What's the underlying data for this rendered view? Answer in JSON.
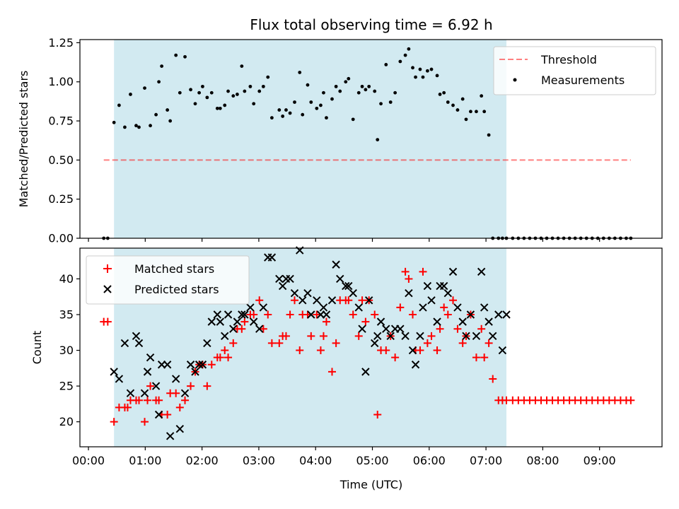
{
  "figure": {
    "title": "Flux total observing time = 6.92 h",
    "xlabel": "Time (UTC)",
    "xtick_labels": [
      "00:00",
      "01:00",
      "02:00",
      "03:00",
      "04:00",
      "05:00",
      "06:00",
      "07:00",
      "08:00",
      "09:00"
    ],
    "colors": {
      "shade": "#add8e6",
      "threshold": "#ff0000",
      "measurements": "#000000",
      "matched": "#ff0000",
      "predicted": "#000000"
    }
  },
  "chart_data": [
    {
      "type": "scatter",
      "ylabel": "Matched/Predicted stars",
      "xlim": [
        -0.15,
        10.1
      ],
      "ylim": [
        0,
        1.27
      ],
      "yticks": [
        0.0,
        0.25,
        0.5,
        0.75,
        1.0,
        1.25
      ],
      "ytick_labels": [
        "0.00",
        "0.25",
        "0.50",
        "0.75",
        "1.00",
        "1.25"
      ],
      "shaded_span": [
        0.45,
        7.36
      ],
      "threshold": {
        "name": "Threshold",
        "y": 0.5,
        "x_range": [
          0.27,
          9.55
        ]
      },
      "legend": {
        "position": "top-right",
        "entries": [
          "Threshold",
          "Measurements"
        ]
      },
      "series": [
        {
          "name": "Measurements",
          "x": [
            0.27,
            0.34,
            0.45,
            0.54,
            0.64,
            0.74,
            0.84,
            0.89,
            0.99,
            1.09,
            1.19,
            1.24,
            1.29,
            1.39,
            1.44,
            1.54,
            1.61,
            1.7,
            1.8,
            1.88,
            1.95,
            2.01,
            2.09,
            2.17,
            2.27,
            2.32,
            2.4,
            2.46,
            2.55,
            2.62,
            2.7,
            2.75,
            2.85,
            2.91,
            3.01,
            3.08,
            3.16,
            3.23,
            3.36,
            3.42,
            3.48,
            3.55,
            3.63,
            3.72,
            3.77,
            3.86,
            3.92,
            4.02,
            4.09,
            4.14,
            4.19,
            4.29,
            4.36,
            4.43,
            4.53,
            4.58,
            4.66,
            4.76,
            4.82,
            4.88,
            4.94,
            5.04,
            5.09,
            5.15,
            5.24,
            5.32,
            5.4,
            5.49,
            5.58,
            5.64,
            5.71,
            5.76,
            5.84,
            5.89,
            5.97,
            6.04,
            6.14,
            6.19,
            6.26,
            6.33,
            6.42,
            6.5,
            6.59,
            6.65,
            6.73,
            6.83,
            6.92,
            6.97,
            7.05,
            7.12,
            7.22,
            7.29,
            7.36,
            7.47,
            7.57,
            7.67,
            7.77,
            7.87,
            7.97,
            8.07,
            8.17,
            8.27,
            8.37,
            8.47,
            8.57,
            8.67,
            8.77,
            8.87,
            8.97,
            9.07,
            9.17,
            9.27,
            9.37,
            9.47,
            9.55
          ],
          "y": [
            0,
            0,
            0.74,
            0.85,
            0.71,
            0.92,
            0.72,
            0.71,
            0.96,
            0.72,
            0.79,
            1.0,
            1.1,
            0.82,
            0.75,
            1.17,
            0.93,
            1.16,
            0.95,
            0.86,
            0.93,
            0.97,
            0.9,
            0.93,
            0.83,
            0.83,
            0.85,
            0.94,
            0.91,
            0.92,
            1.1,
            0.94,
            0.97,
            0.86,
            0.94,
            0.97,
            1.03,
            0.77,
            0.82,
            0.78,
            0.82,
            0.8,
            0.87,
            1.06,
            0.79,
            0.98,
            0.87,
            0.83,
            0.85,
            0.93,
            0.77,
            0.89,
            0.97,
            0.94,
            1.0,
            1.02,
            0.76,
            0.93,
            0.97,
            0.95,
            0.97,
            0.94,
            0.63,
            0.86,
            1.11,
            0.87,
            0.93,
            1.13,
            1.17,
            1.21,
            1.09,
            1.03,
            1.08,
            1.03,
            1.07,
            1.08,
            1.04,
            0.92,
            0.93,
            0.87,
            0.85,
            0.82,
            0.89,
            0.76,
            0.81,
            0.81,
            0.91,
            0.81,
            0.66,
            0,
            0,
            0,
            0,
            0,
            0,
            0,
            0,
            0,
            0,
            0,
            0,
            0,
            0,
            0,
            0,
            0,
            0,
            0,
            0,
            0,
            0,
            0,
            0,
            0,
            0
          ]
        }
      ]
    },
    {
      "type": "scatter",
      "ylabel": "Count",
      "xlim": [
        -0.15,
        10.1
      ],
      "ylim": [
        16.5,
        44.3
      ],
      "yticks": [
        20,
        25,
        30,
        35,
        40
      ],
      "ytick_labels": [
        "20",
        "25",
        "30",
        "35",
        "40"
      ],
      "shaded_span": [
        0.45,
        7.36
      ],
      "legend": {
        "position": "top-left",
        "entries": [
          "Matched stars",
          "Predicted stars"
        ]
      },
      "series": [
        {
          "name": "Matched stars",
          "x": [
            0.27,
            0.34,
            0.45,
            0.54,
            0.64,
            0.69,
            0.74,
            0.84,
            0.89,
            0.99,
            1.04,
            1.09,
            1.19,
            1.24,
            1.29,
            1.39,
            1.44,
            1.54,
            1.61,
            1.7,
            1.8,
            1.88,
            1.95,
            2.01,
            2.09,
            2.17,
            2.27,
            2.32,
            2.4,
            2.46,
            2.55,
            2.62,
            2.7,
            2.75,
            2.85,
            2.91,
            3.01,
            3.08,
            3.16,
            3.23,
            3.36,
            3.42,
            3.48,
            3.55,
            3.63,
            3.72,
            3.77,
            3.86,
            3.92,
            4.02,
            4.09,
            4.14,
            4.19,
            4.29,
            4.36,
            4.43,
            4.53,
            4.58,
            4.66,
            4.76,
            4.82,
            4.88,
            4.94,
            5.04,
            5.09,
            5.15,
            5.24,
            5.32,
            5.4,
            5.49,
            5.58,
            5.64,
            5.71,
            5.76,
            5.84,
            5.89,
            5.97,
            6.04,
            6.14,
            6.19,
            6.26,
            6.33,
            6.42,
            6.5,
            6.59,
            6.65,
            6.73,
            6.83,
            6.92,
            6.97,
            7.05,
            7.12,
            7.22,
            7.29,
            7.36,
            7.47,
            7.57,
            7.67,
            7.77,
            7.87,
            7.97,
            8.07,
            8.17,
            8.27,
            8.37,
            8.47,
            8.57,
            8.67,
            8.77,
            8.87,
            8.97,
            9.07,
            9.17,
            9.27,
            9.37,
            9.47,
            9.55
          ],
          "y": [
            34,
            34,
            20,
            22,
            22,
            22,
            23,
            23,
            23,
            20,
            23,
            25,
            23,
            23,
            21,
            21,
            24,
            24,
            22,
            23,
            25,
            27,
            28,
            28,
            25,
            28,
            29,
            29,
            30,
            29,
            31,
            33,
            33,
            34,
            35,
            35,
            37,
            33,
            35,
            31,
            31,
            32,
            32,
            35,
            37,
            30,
            35,
            35,
            32,
            35,
            30,
            32,
            34,
            27,
            31,
            37,
            37,
            37,
            35,
            32,
            37,
            34,
            37,
            35,
            21,
            30,
            30,
            32,
            29,
            36,
            41,
            40,
            35,
            30,
            30,
            41,
            31,
            32,
            30,
            33,
            36,
            35,
            37,
            33,
            31,
            32,
            35,
            29,
            33,
            29,
            31,
            26,
            23,
            23,
            23,
            23,
            23,
            23,
            23,
            23,
            23,
            23,
            23,
            23,
            23,
            23,
            23,
            23,
            23,
            23,
            23,
            23,
            23,
            23,
            23,
            23,
            23
          ]
        },
        {
          "name": "Predicted stars",
          "x": [
            0.45,
            0.54,
            0.64,
            0.74,
            0.84,
            0.89,
            0.99,
            1.04,
            1.09,
            1.19,
            1.24,
            1.29,
            1.39,
            1.44,
            1.54,
            1.61,
            1.7,
            1.8,
            1.88,
            1.95,
            2.01,
            2.09,
            2.17,
            2.27,
            2.32,
            2.4,
            2.46,
            2.55,
            2.62,
            2.7,
            2.75,
            2.85,
            2.91,
            3.01,
            3.08,
            3.16,
            3.23,
            3.36,
            3.42,
            3.48,
            3.55,
            3.63,
            3.72,
            3.77,
            3.86,
            3.92,
            4.02,
            4.09,
            4.14,
            4.19,
            4.29,
            4.36,
            4.43,
            4.53,
            4.58,
            4.66,
            4.76,
            4.82,
            4.88,
            4.94,
            5.04,
            5.09,
            5.15,
            5.24,
            5.32,
            5.4,
            5.49,
            5.58,
            5.64,
            5.71,
            5.76,
            5.84,
            5.89,
            5.97,
            6.04,
            6.14,
            6.19,
            6.26,
            6.33,
            6.42,
            6.5,
            6.59,
            6.65,
            6.73,
            6.83,
            6.92,
            6.97,
            7.05,
            7.12,
            7.22,
            7.29,
            7.36
          ],
          "y": [
            27,
            26,
            31,
            24,
            32,
            31,
            24,
            27,
            29,
            25,
            21,
            28,
            28,
            18,
            26,
            19,
            24,
            28,
            27,
            28,
            28,
            31,
            34,
            35,
            34,
            32,
            35,
            33,
            34,
            35,
            35,
            36,
            34,
            33,
            36,
            43,
            43,
            40,
            39,
            40,
            40,
            38,
            44,
            37,
            38,
            35,
            37,
            35,
            36,
            35,
            37,
            42,
            40,
            39,
            39,
            38,
            36,
            33,
            27,
            37,
            31,
            32,
            34,
            33,
            32,
            33,
            33,
            32,
            38,
            30,
            28,
            32,
            36,
            39,
            37,
            34,
            39,
            39,
            38,
            41,
            36,
            34,
            32,
            35,
            32,
            41,
            36,
            34,
            32,
            35,
            30,
            35
          ]
        }
      ]
    }
  ]
}
